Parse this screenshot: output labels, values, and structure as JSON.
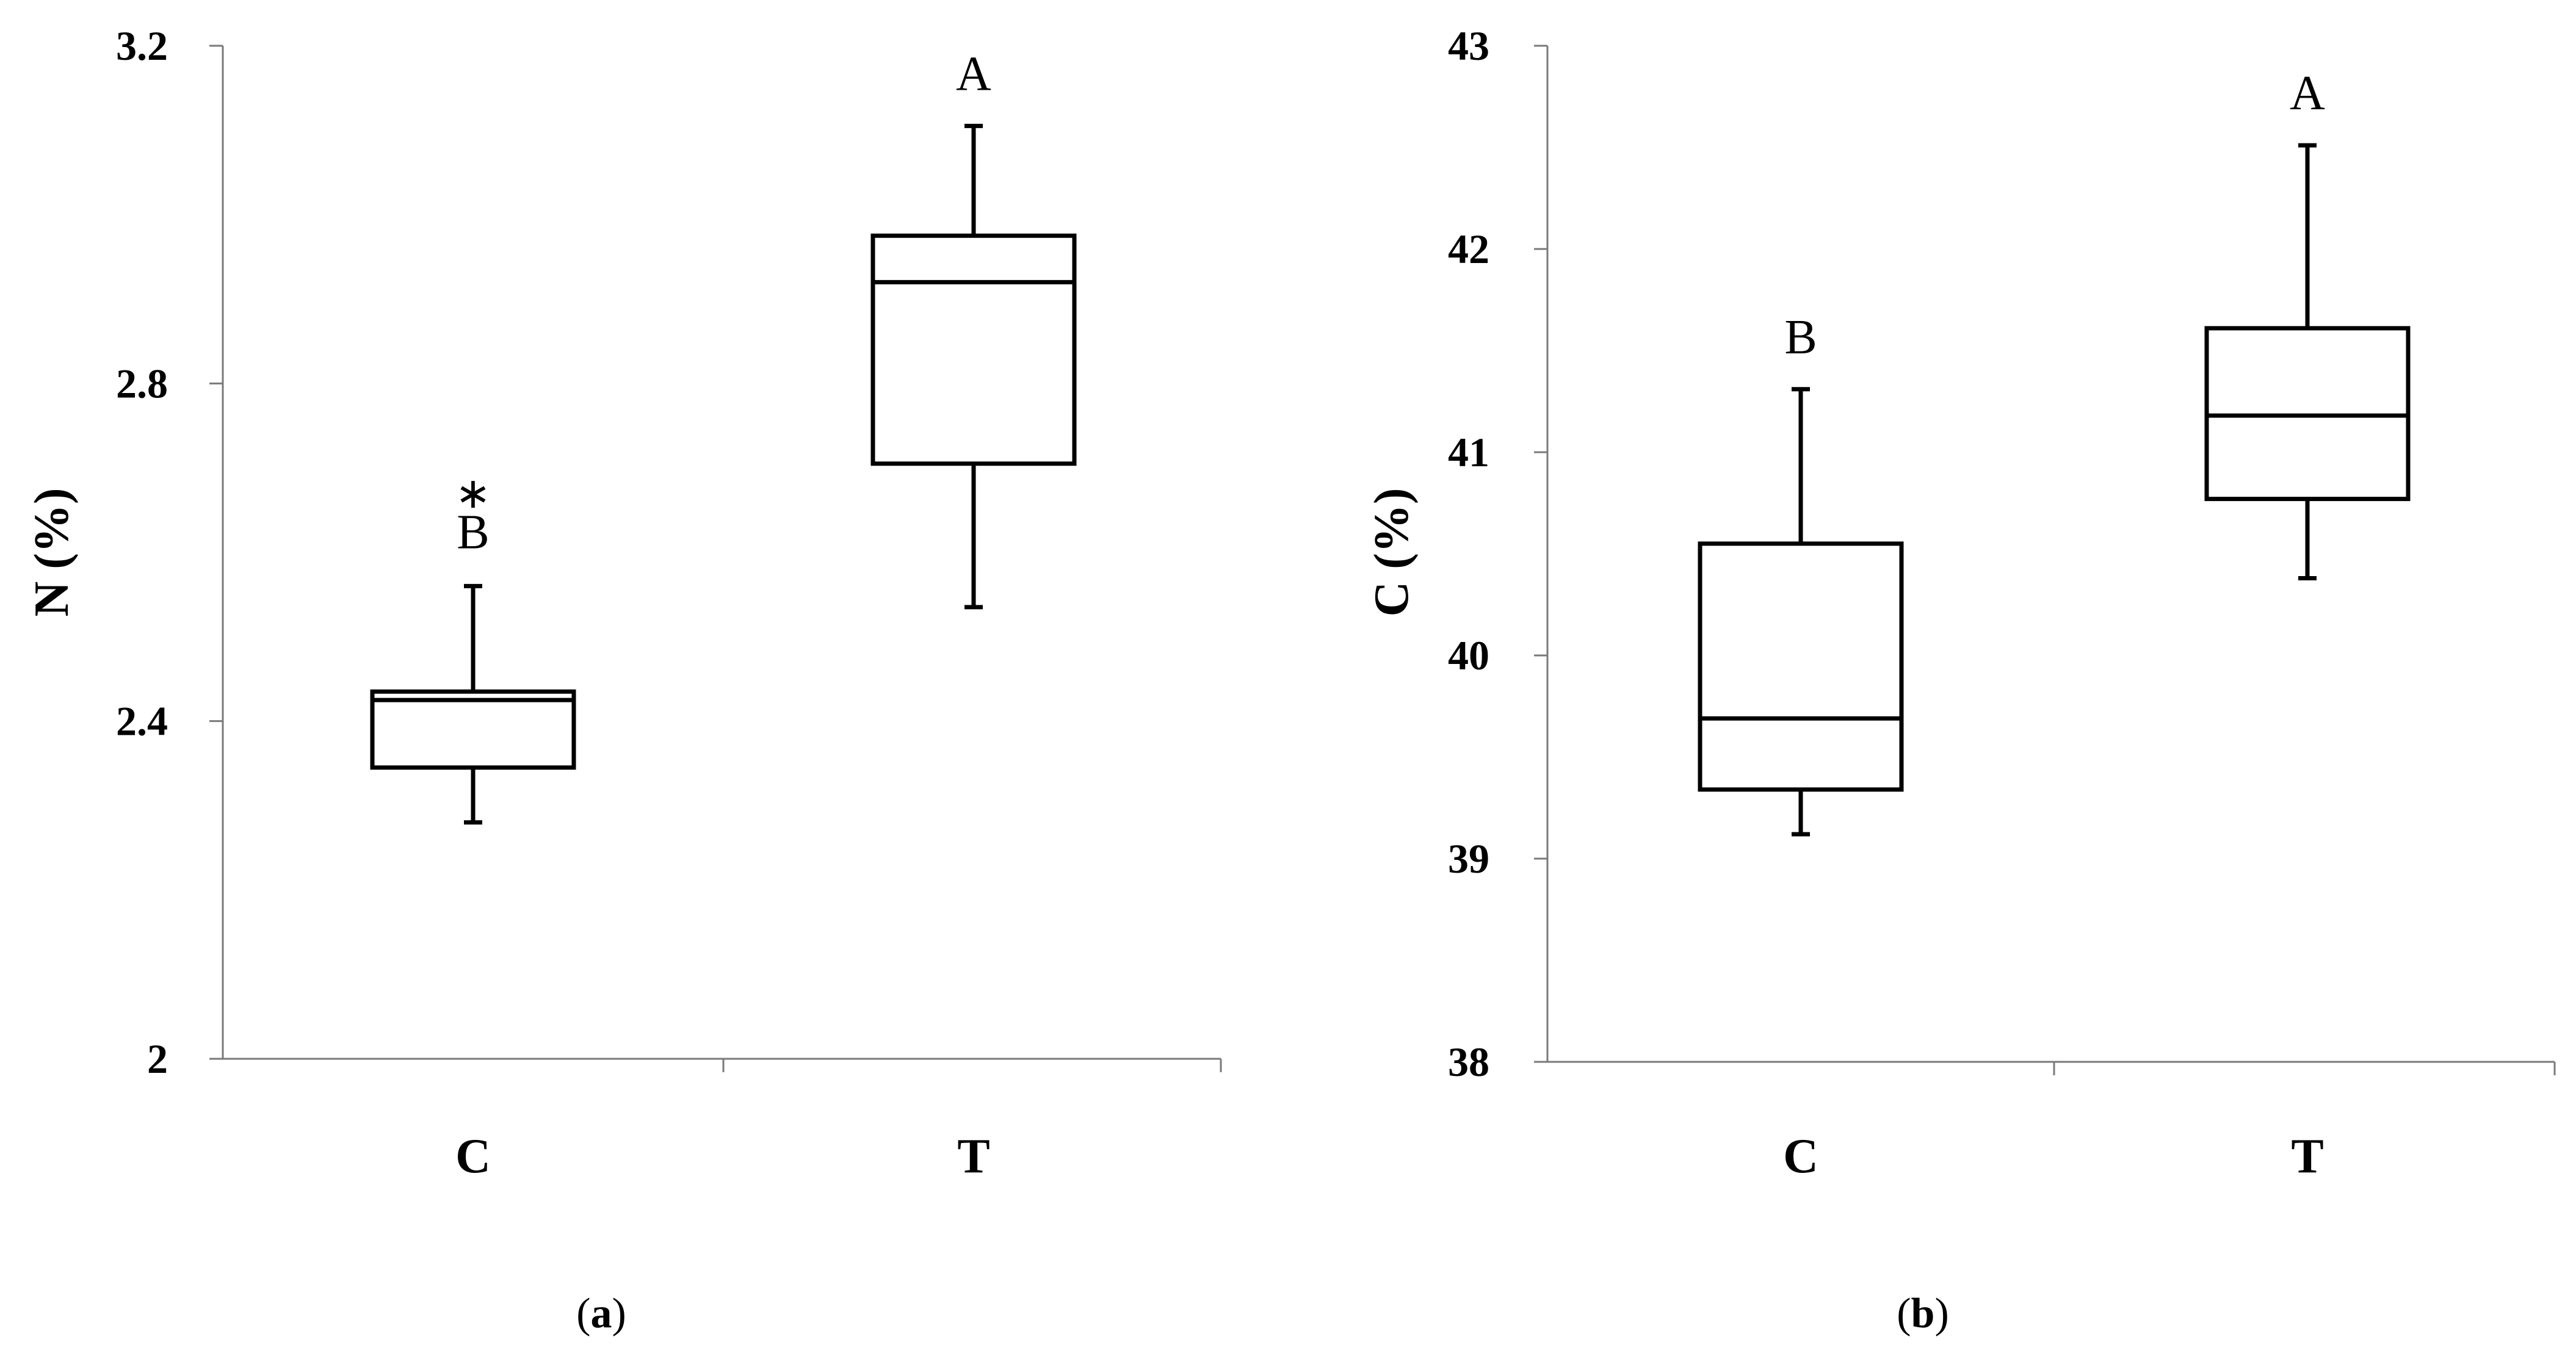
{
  "chart_data": [
    {
      "panel": "(a)",
      "panel_letter": "a",
      "type": "box",
      "ylabel": "N (%)",
      "ylim": [
        2,
        3.2
      ],
      "yticks": [
        "2",
        "2.4",
        "2.8",
        "3.2"
      ],
      "ytick_values": [
        2,
        2.4,
        2.8,
        3.2
      ],
      "categories": [
        "C",
        "T"
      ],
      "grid": false,
      "boxes": [
        {
          "category": "C",
          "min": 2.28,
          "q1": 2.345,
          "median": 2.425,
          "q3": 2.435,
          "max": 2.56,
          "outliers": [
            2.685
          ],
          "outlier_symbol": "∗",
          "group_letter": "B"
        },
        {
          "category": "T",
          "min": 2.535,
          "q1": 2.705,
          "median": 2.92,
          "q3": 2.975,
          "max": 3.105,
          "outliers": [],
          "outlier_symbol": "",
          "group_letter": "A"
        }
      ]
    },
    {
      "panel": "(b)",
      "panel_letter": "b",
      "type": "box",
      "ylabel": "C (%)",
      "ylim": [
        38,
        43
      ],
      "yticks": [
        "38",
        "39",
        "40",
        "41",
        "42",
        "43"
      ],
      "ytick_values": [
        38,
        39,
        40,
        41,
        42,
        43
      ],
      "categories": [
        "C",
        "T"
      ],
      "grid": false,
      "boxes": [
        {
          "category": "C",
          "min": 39.12,
          "q1": 39.34,
          "median": 39.69,
          "q3": 40.55,
          "max": 41.31,
          "outliers": [],
          "outlier_symbol": "",
          "group_letter": "B"
        },
        {
          "category": "T",
          "min": 40.38,
          "q1": 40.77,
          "median": 41.18,
          "q3": 41.61,
          "max": 42.51,
          "outliers": [],
          "outlier_symbol": "",
          "group_letter": "A"
        }
      ]
    }
  ]
}
